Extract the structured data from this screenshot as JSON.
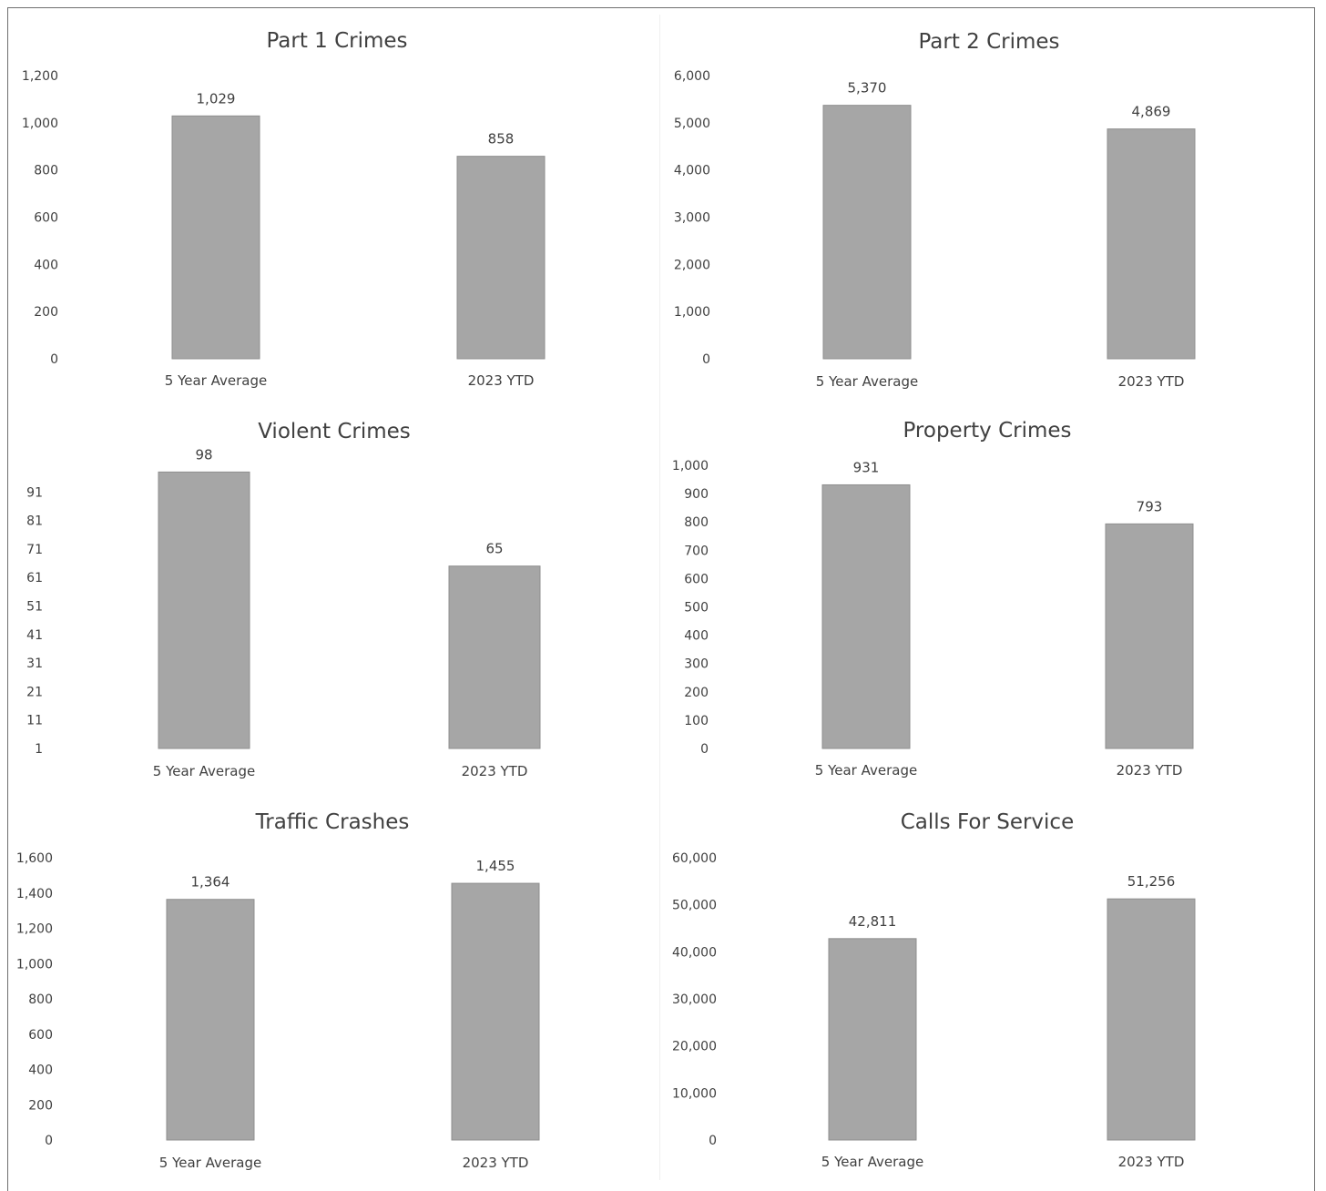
{
  "chart_data": [
    {
      "type": "bar",
      "title": "Part 1 Crimes",
      "categories": [
        "5 Year Average",
        "2023 YTD"
      ],
      "values": [
        1029,
        858
      ],
      "value_labels": [
        "1,029",
        "858"
      ],
      "yticks": [
        "0",
        "200",
        "400",
        "600",
        "800",
        "1,000",
        "1,200"
      ],
      "ylim": [
        0,
        1200
      ],
      "grid": false,
      "bar_color": "#a6a6a6"
    },
    {
      "type": "bar",
      "title": "Part 2 Crimes",
      "categories": [
        "5 Year Average",
        "2023 YTD"
      ],
      "values": [
        5370,
        4869
      ],
      "value_labels": [
        "5,370",
        "4,869"
      ],
      "yticks": [
        "0",
        "1,000",
        "2,000",
        "3,000",
        "4,000",
        "5,000",
        "6,000"
      ],
      "ylim": [
        0,
        6000
      ],
      "grid": false,
      "bar_color": "#a6a6a6"
    },
    {
      "type": "bar",
      "title": "Violent Crimes",
      "categories": [
        "5 Year Average",
        "2023 YTD"
      ],
      "values": [
        98,
        65
      ],
      "value_labels": [
        "98",
        "65"
      ],
      "yticks": [
        "1",
        "11",
        "21",
        "31",
        "41",
        "51",
        "61",
        "71",
        "81",
        "91"
      ],
      "ylim": [
        1,
        101
      ],
      "grid": false,
      "bar_color": "#a6a6a6"
    },
    {
      "type": "bar",
      "title": "Property Crimes",
      "categories": [
        "5 Year Average",
        "2023 YTD"
      ],
      "values": [
        931,
        793
      ],
      "value_labels": [
        "931",
        "793"
      ],
      "yticks": [
        "0",
        "100",
        "200",
        "300",
        "400",
        "500",
        "600",
        "700",
        "800",
        "900",
        "1,000"
      ],
      "ylim": [
        0,
        1000
      ],
      "grid": false,
      "bar_color": "#a6a6a6"
    },
    {
      "type": "bar",
      "title": "Traffic Crashes",
      "categories": [
        "5 Year Average",
        "2023 YTD"
      ],
      "values": [
        1364,
        1455
      ],
      "value_labels": [
        "1,364",
        "1,455"
      ],
      "yticks": [
        "0",
        "200",
        "400",
        "600",
        "800",
        "1,000",
        "1,200",
        "1,400",
        "1,600"
      ],
      "ylim": [
        0,
        1600
      ],
      "grid": false,
      "bar_color": "#a6a6a6"
    },
    {
      "type": "bar",
      "title": "Calls For Service",
      "categories": [
        "5 Year Average",
        "2023 YTD"
      ],
      "values": [
        42811,
        51256
      ],
      "value_labels": [
        "42,811",
        "51,256"
      ],
      "yticks": [
        "0",
        "10,000",
        "20,000",
        "30,000",
        "40,000",
        "50,000",
        "60,000"
      ],
      "ylim": [
        0,
        60000
      ],
      "grid": false,
      "bar_color": "#a6a6a6"
    }
  ]
}
